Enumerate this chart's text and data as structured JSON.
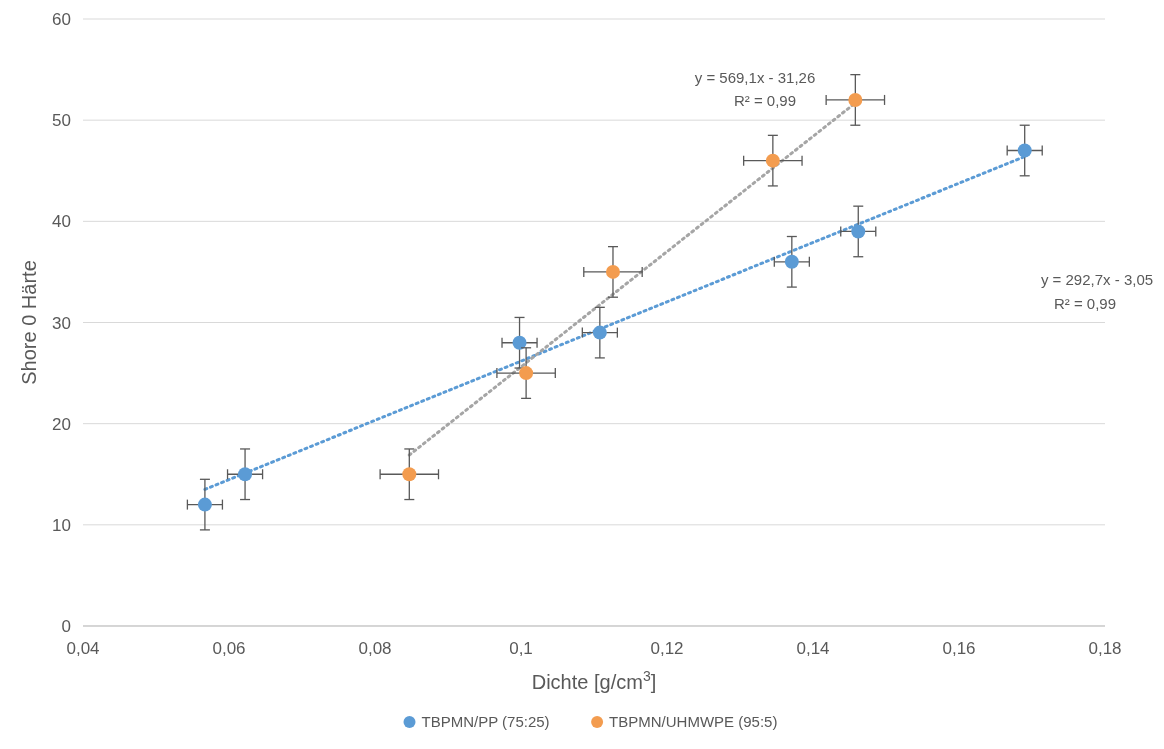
{
  "chart_data": {
    "type": "scatter",
    "xlabel": "Dichte [g/cm$^{3}$]",
    "ylabel": "Shore 0 Härte",
    "xlim": [
      0.04,
      0.18
    ],
    "xticks": [
      {
        "value": 0.04,
        "label": "0,04"
      },
      {
        "value": 0.06,
        "label": "0,06"
      },
      {
        "value": 0.08,
        "label": "0,08"
      },
      {
        "value": 0.1,
        "label": "0,1"
      },
      {
        "value": 0.12,
        "label": "0,12"
      },
      {
        "value": 0.14,
        "label": "0,14"
      },
      {
        "value": 0.16,
        "label": "0,16"
      },
      {
        "value": 0.18,
        "label": "0,18"
      }
    ],
    "ylim": [
      0,
      60
    ],
    "yticks": [
      0,
      10,
      20,
      30,
      40,
      50,
      60
    ],
    "grid": "y",
    "legend": "bottom",
    "marker": "circle",
    "series": [
      {
        "name": "TBPMN/PP (75:25)",
        "color": "#5b9bd5",
        "x": [
          0.0567,
          0.0622,
          0.0998,
          0.1108,
          0.1371,
          0.1462,
          0.169
        ],
        "values": [
          12,
          15,
          28,
          29,
          36,
          39,
          47
        ],
        "errors": [
          2.5,
          2.5,
          2.5,
          2.5,
          2.5,
          2.5,
          2.5
        ],
        "xerrors": [
          0.0024,
          0.0024,
          0.0024,
          0.0024,
          0.0024,
          0.0024,
          0.0024
        ]
      },
      {
        "name": "TBPMN/UHMWPE (95:5)",
        "color": "#f39c4f",
        "x": [
          0.0847,
          0.1007,
          0.1126,
          0.1345,
          0.1458
        ],
        "values": [
          15,
          25,
          35,
          46,
          52
        ],
        "errors": [
          2.5,
          2.5,
          2.5,
          2.5,
          2.5
        ],
        "xerrors": [
          0.004,
          0.004,
          0.004,
          0.004,
          0.004
        ]
      },
      {
        "type": "line",
        "color": "#5b9bd5",
        "line_style": "dotted",
        "marker": "none",
        "x": [
          0.0567,
          0.169
        ],
        "values": [
          13.5,
          46.4
        ]
      },
      {
        "type": "line",
        "color": "#a5a5a5",
        "line_style": "dotted",
        "marker": "none",
        "x": [
          0.0847,
          0.1458
        ],
        "values": [
          16.9,
          51.7
        ]
      }
    ],
    "annotations": [
      "y = 569,1x - 31,26",
      "R² = 0,99",
      "y = 292,7x - 3,05",
      "R² = 0,99"
    ]
  }
}
